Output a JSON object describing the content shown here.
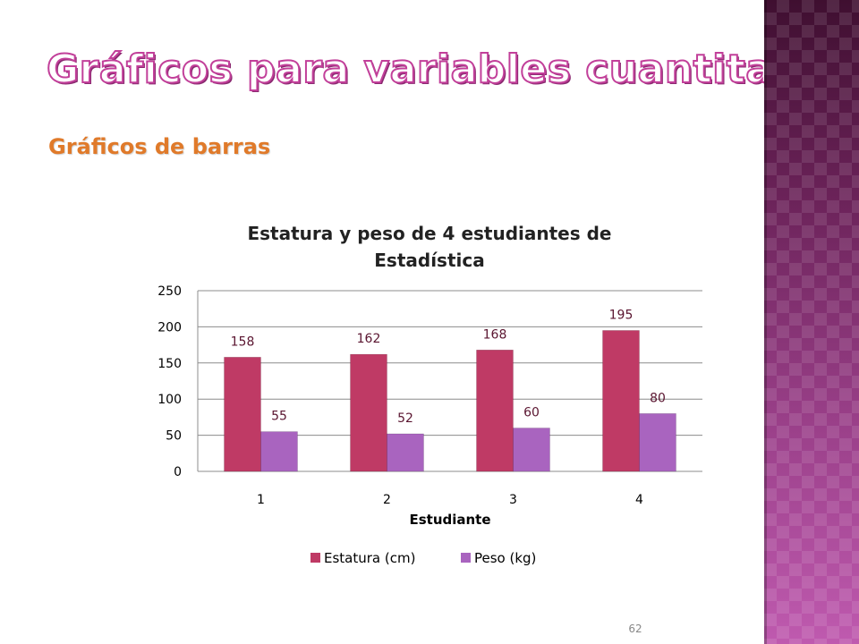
{
  "slide": {
    "title": "Gráficos para variables cuantitativas",
    "subtitle": "Gráficos de barras",
    "page_number": "62"
  },
  "colors": {
    "title_fill": "#ffffff",
    "title_outline": "#c2409a",
    "subtitle": "#e07a2a",
    "series_estatura": "#bf3a65",
    "series_peso": "#a964bf",
    "side_band": "#7a2a68"
  },
  "chart_data": {
    "type": "bar",
    "title": "Estatura y peso de 4 estudiantes de Estadística",
    "title_lines": [
      "Estatura y peso de 4 estudiantes de",
      "Estadística"
    ],
    "xlabel": "Estudiante",
    "ylabel": "",
    "categories": [
      "1",
      "2",
      "3",
      "4"
    ],
    "series": [
      {
        "name": "Estatura (cm)",
        "values": [
          158,
          162,
          168,
          195
        ],
        "color": "#bf3a65"
      },
      {
        "name": "Peso (kg)",
        "values": [
          55,
          52,
          60,
          80
        ],
        "color": "#a964bf"
      }
    ],
    "ylim": [
      0,
      250
    ],
    "yticks": [
      0,
      50,
      100,
      150,
      200,
      250
    ],
    "grid": true,
    "data_labels": true,
    "legend_position": "bottom"
  }
}
